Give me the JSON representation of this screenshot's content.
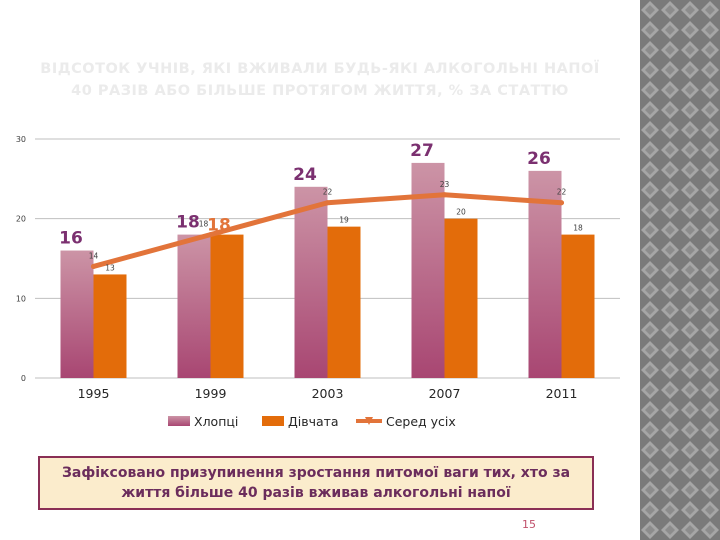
{
  "slide": {
    "title": "ВІДСОТОК УЧНІВ, ЯКІ ВЖИВАЛИ БУДЬ-ЯКІ АЛКОГОЛЬНІ НАПОЇ 40 РАЗІВ АБО БІЛЬШЕ ПРОТЯГОМ ЖИТТЯ, % ЗА СТАТТЮ",
    "title_line1": "ВІДСОТОК УЧНІВ, ЯКІ ВЖИВАЛИ БУДЬ-ЯКІ АЛКОГОЛЬНІ НАПОЇ",
    "title_line2": "40 РАЗІВ АБО БІЛЬШЕ ПРОТЯГОМ ЖИТТЯ, % ЗА СТАТТЮ",
    "note": "Зафіксовано призупинення зростання питомої ваги тих, хто за життя більше 40 разів вживав алкогольні напої",
    "page_number": "15"
  },
  "colors": {
    "boys_top": "#cc94a6",
    "boys_bottom": "#a84672",
    "girls": "#e36c0a",
    "total_line": "#e2743a",
    "big_label": "#7b3070",
    "gridline": "#bfbfbf"
  },
  "chart_data": {
    "type": "bar",
    "categories": [
      "1995",
      "1999",
      "2003",
      "2007",
      "2011"
    ],
    "series": [
      {
        "name": "Хлопці",
        "kind": "bar",
        "values": [
          16,
          18,
          24,
          27,
          26
        ]
      },
      {
        "name": "Дівчата",
        "kind": "bar",
        "values": [
          13,
          18,
          19,
          20,
          18
        ]
      },
      {
        "name": "Серед усіх",
        "kind": "line",
        "values": [
          14,
          18,
          22,
          23,
          22
        ]
      }
    ],
    "yticks": [
      0,
      10,
      20,
      30
    ],
    "ylim": [
      0,
      30
    ],
    "grid": true,
    "legend": "bottom"
  }
}
